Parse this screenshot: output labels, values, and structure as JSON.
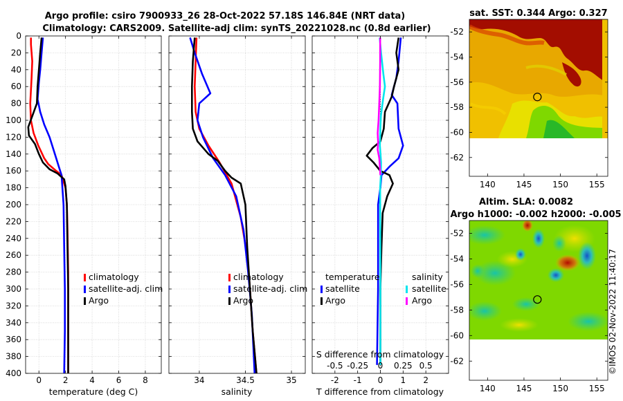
{
  "colors": {
    "climatology": "#ff0000",
    "satellite": "#0000ff",
    "argo": "#000000",
    "sal_satellite": "#00e5ee",
    "sal_argo": "#ff00ff",
    "sst_low": "#dba200",
    "sst_high": "#a30d00",
    "sla_mid": "#7fd800",
    "sla_low": "#1a66cc",
    "sla_high": "#c62000"
  },
  "text": {
    "title_line1": "Argo profile: csiro 7900933_26 28-Oct-2022 57.18S 146.84E (NRT data)",
    "title_line2": "Climatology: CARS2009. Satellite-adj clim: synTS_20221028.nc (0.8d earlier)",
    "sst_title": "sat. SST: 0.344 Argo: 0.327",
    "sla_title1": "Altim. SLA: 0.0082",
    "sla_title2": "Argo h1000: -0.002 h2000: -0.005",
    "watermark": "©IMOS 02-Nov-2022 11:40:17"
  },
  "chart_data": [
    {
      "id": "temperature",
      "type": "line",
      "xlabel": "temperature (deg C)",
      "ylabel": "",
      "xlim": [
        -1,
        9.2
      ],
      "ylim": [
        400,
        0
      ],
      "xticks": [
        0,
        2,
        4,
        6,
        8
      ],
      "xtick_labels": [
        "0",
        "2",
        "4",
        "6",
        "8"
      ],
      "yticks": [
        0,
        20,
        40,
        60,
        80,
        100,
        120,
        140,
        160,
        180,
        200,
        220,
        240,
        260,
        280,
        300,
        320,
        340,
        360,
        380,
        400
      ],
      "legend": [
        "climatology",
        "satellite-adj. clim",
        "Argo"
      ],
      "legend_position": "center-right",
      "series": [
        {
          "name": "climatology",
          "color_key": "climatology",
          "points": [
            [
              -0.6,
              2
            ],
            [
              -0.6,
              10
            ],
            [
              -0.5,
              30
            ],
            [
              -0.55,
              50
            ],
            [
              -0.65,
              80
            ],
            [
              -0.6,
              100
            ],
            [
              -0.4,
              115
            ],
            [
              -0.05,
              130
            ],
            [
              0.4,
              145
            ],
            [
              0.7,
              152
            ],
            [
              1.3,
              160
            ],
            [
              1.7,
              165
            ],
            [
              2.0,
              180
            ],
            [
              2.1,
              200
            ],
            [
              2.15,
              230
            ],
            [
              2.2,
              280
            ],
            [
              2.2,
              330
            ],
            [
              2.2,
              400
            ]
          ]
        },
        {
          "name": "satellite-adj. clim",
          "color_key": "satellite",
          "points": [
            [
              0.3,
              2
            ],
            [
              0.2,
              20
            ],
            [
              0.1,
              40
            ],
            [
              0,
              55
            ],
            [
              -0.1,
              75
            ],
            [
              0.1,
              90
            ],
            [
              0.4,
              105
            ],
            [
              0.8,
              120
            ],
            [
              1.2,
              140
            ],
            [
              1.5,
              155
            ],
            [
              1.7,
              165
            ],
            [
              1.85,
              200
            ],
            [
              1.9,
              250
            ],
            [
              1.95,
              300
            ],
            [
              1.95,
              350
            ],
            [
              1.9,
              400
            ]
          ]
        },
        {
          "name": "Argo",
          "color_key": "argo",
          "points": [
            [
              0.2,
              2
            ],
            [
              0.1,
              20
            ],
            [
              0,
              40
            ],
            [
              -0.1,
              60
            ],
            [
              -0.15,
              80
            ],
            [
              -0.5,
              95
            ],
            [
              -0.8,
              108
            ],
            [
              -0.75,
              118
            ],
            [
              -0.3,
              128
            ],
            [
              0,
              140
            ],
            [
              0.3,
              150
            ],
            [
              0.8,
              158
            ],
            [
              1.4,
              163
            ],
            [
              1.9,
              170
            ],
            [
              2.0,
              178
            ],
            [
              2.1,
              200
            ],
            [
              2.15,
              250
            ],
            [
              2.2,
              300
            ],
            [
              2.2,
              350
            ],
            [
              2.2,
              400
            ]
          ]
        }
      ]
    },
    {
      "id": "salinity",
      "type": "line",
      "xlabel": "salinity",
      "ylabel": "",
      "xlim": [
        33.67,
        35.15
      ],
      "ylim": [
        400,
        0
      ],
      "xticks": [
        34,
        34.5,
        35
      ],
      "xtick_labels": [
        "34",
        "34.5",
        "35"
      ],
      "yticks": [
        0,
        20,
        40,
        60,
        80,
        100,
        120,
        140,
        160,
        180,
        200,
        220,
        240,
        260,
        280,
        300,
        320,
        340,
        360,
        380,
        400
      ],
      "legend": [
        "climatology",
        "satellite-adj. clim",
        "Argo"
      ],
      "legend_position": "center-right",
      "series": [
        {
          "name": "climatology",
          "color_key": "climatology",
          "points": [
            [
              33.97,
              2
            ],
            [
              33.96,
              30
            ],
            [
              33.95,
              60
            ],
            [
              33.96,
              90
            ],
            [
              34.0,
              110
            ],
            [
              34.1,
              130
            ],
            [
              34.22,
              150
            ],
            [
              34.35,
              175
            ],
            [
              34.45,
              215
            ],
            [
              34.52,
              260
            ],
            [
              34.55,
              300
            ],
            [
              34.58,
              350
            ],
            [
              34.62,
              400
            ]
          ]
        },
        {
          "name": "satellite-adj. clim",
          "color_key": "satellite",
          "points": [
            [
              33.9,
              2
            ],
            [
              33.95,
              20
            ],
            [
              34.03,
              45
            ],
            [
              34.12,
              68
            ],
            [
              34.0,
              80
            ],
            [
              33.98,
              100
            ],
            [
              34.04,
              120
            ],
            [
              34.15,
              145
            ],
            [
              34.28,
              165
            ],
            [
              34.4,
              190
            ],
            [
              34.48,
              230
            ],
            [
              34.53,
              280
            ],
            [
              34.57,
              330
            ],
            [
              34.6,
              400
            ]
          ]
        },
        {
          "name": "Argo",
          "color_key": "argo",
          "points": [
            [
              33.95,
              2
            ],
            [
              33.93,
              30
            ],
            [
              33.92,
              60
            ],
            [
              33.92,
              90
            ],
            [
              33.93,
              110
            ],
            [
              33.98,
              125
            ],
            [
              34.1,
              140
            ],
            [
              34.2,
              148
            ],
            [
              34.28,
              160
            ],
            [
              34.35,
              168
            ],
            [
              34.45,
              175
            ],
            [
              34.5,
              200
            ],
            [
              34.52,
              250
            ],
            [
              34.55,
              300
            ],
            [
              34.58,
              350
            ],
            [
              34.62,
              400
            ]
          ]
        }
      ]
    },
    {
      "id": "difference",
      "type": "line",
      "xlabel": "T difference from climatology",
      "ylabel": "",
      "xlim": [
        -3,
        3
      ],
      "ylim": [
        400,
        0
      ],
      "xticks": [
        -2,
        -1,
        0,
        1,
        2
      ],
      "xtick_labels": [
        "-2",
        "-1",
        "0",
        "1",
        "2"
      ],
      "secondary_xlabel": "S difference from climatology",
      "secondary_xticks": [
        -0.5,
        -0.25,
        0,
        0.25,
        0.5
      ],
      "secondary_xtick_labels": [
        "-0.5",
        "-0.25",
        "0",
        "0.25",
        "0.5"
      ],
      "secondary_xlim": [
        -0.75,
        0.75
      ],
      "yticks": [
        0,
        20,
        40,
        60,
        80,
        100,
        120,
        140,
        160,
        180,
        200,
        220,
        240,
        260,
        280,
        300,
        320,
        340,
        360,
        380,
        400
      ],
      "legend_titles": [
        "temperature",
        "salinity"
      ],
      "legend": [
        "satellite",
        "Argo",
        "satellite",
        "Argo"
      ],
      "legend_position": "center",
      "series": [
        {
          "name": "temperature satellite",
          "color_key": "satellite",
          "points": [
            [
              0.9,
              2
            ],
            [
              0.8,
              30
            ],
            [
              0.7,
              50
            ],
            [
              0.5,
              70
            ],
            [
              0.75,
              80
            ],
            [
              0.8,
              110
            ],
            [
              1.0,
              130
            ],
            [
              0.8,
              145
            ],
            [
              0.4,
              155
            ],
            [
              0.05,
              165
            ],
            [
              0,
              180
            ],
            [
              -0.1,
              200
            ],
            [
              -0.1,
              300
            ],
            [
              -0.15,
              390
            ]
          ]
        },
        {
          "name": "temperature Argo",
          "color_key": "argo",
          "points": [
            [
              0.8,
              2
            ],
            [
              0.7,
              20
            ],
            [
              0.8,
              40
            ],
            [
              0.6,
              60
            ],
            [
              0.5,
              72
            ],
            [
              0.2,
              90
            ],
            [
              0.15,
              110
            ],
            [
              0,
              125
            ],
            [
              -0.35,
              133
            ],
            [
              -0.6,
              142
            ],
            [
              -0.3,
              150
            ],
            [
              0,
              160
            ],
            [
              0.4,
              165
            ],
            [
              0.55,
              175
            ],
            [
              0.3,
              190
            ],
            [
              0.1,
              210
            ],
            [
              0.05,
              250
            ],
            [
              0,
              300
            ],
            [
              0,
              350
            ],
            [
              0,
              390
            ]
          ]
        },
        {
          "name": "salinity satellite",
          "color_key": "sal_satellite",
          "points": [
            [
              -0.03,
              2
            ],
            [
              0.03,
              20
            ],
            [
              0.13,
              45
            ],
            [
              0.2,
              60
            ],
            [
              0.12,
              75
            ],
            [
              0.02,
              95
            ],
            [
              0,
              110
            ],
            [
              -0.02,
              130
            ],
            [
              0.03,
              150
            ],
            [
              0.02,
              165
            ],
            [
              -0.01,
              180
            ],
            [
              -0.01,
              200
            ],
            [
              0,
              300
            ],
            [
              0,
              390
            ]
          ]
        },
        {
          "name": "salinity Argo",
          "color_key": "sal_argo",
          "points": [
            [
              -0.01,
              2
            ],
            [
              -0.01,
              30
            ],
            [
              -0.02,
              60
            ],
            [
              -0.05,
              80
            ],
            [
              -0.08,
              100
            ],
            [
              -0.12,
              115
            ],
            [
              -0.1,
              125
            ],
            [
              -0.12,
              135
            ],
            [
              -0.05,
              145
            ],
            [
              -0.02,
              155
            ],
            [
              0,
              165
            ]
          ]
        }
      ]
    },
    {
      "id": "sst_map",
      "type": "heatmap",
      "title": "sat. SST: 0.344 Argo: 0.327",
      "xlim": [
        137.5,
        156.5
      ],
      "ylim": [
        -63.5,
        -51
      ],
      "xticks": [
        140,
        145,
        150,
        155
      ],
      "xtick_labels": [
        "140",
        "145",
        "150",
        "155"
      ],
      "yticks": [
        -52,
        -54,
        -56,
        -58,
        -60,
        -62
      ],
      "ytick_labels": [
        "-52",
        "-54",
        "-56",
        "-58",
        "-60",
        "-62"
      ],
      "data_extent_lat": [
        -60,
        -51
      ],
      "marker": {
        "lon": 146.84,
        "lat": -57.18
      }
    },
    {
      "id": "sla_map",
      "type": "heatmap",
      "title": "Altim. SLA: 0.0082",
      "subtitle": "Argo h1000: -0.002 h2000: -0.005",
      "xlim": [
        137.5,
        156.5
      ],
      "ylim": [
        -63.5,
        -51
      ],
      "xticks": [
        140,
        145,
        150,
        155
      ],
      "xtick_labels": [
        "140",
        "145",
        "150",
        "155"
      ],
      "yticks": [
        -52,
        -54,
        -56,
        -58,
        -60,
        -62
      ],
      "ytick_labels": [
        "-52",
        "-54",
        "-56",
        "-58",
        "-60",
        "-62"
      ],
      "data_extent_lat": [
        -60,
        -51
      ],
      "marker": {
        "lon": 146.84,
        "lat": -57.18
      }
    }
  ]
}
